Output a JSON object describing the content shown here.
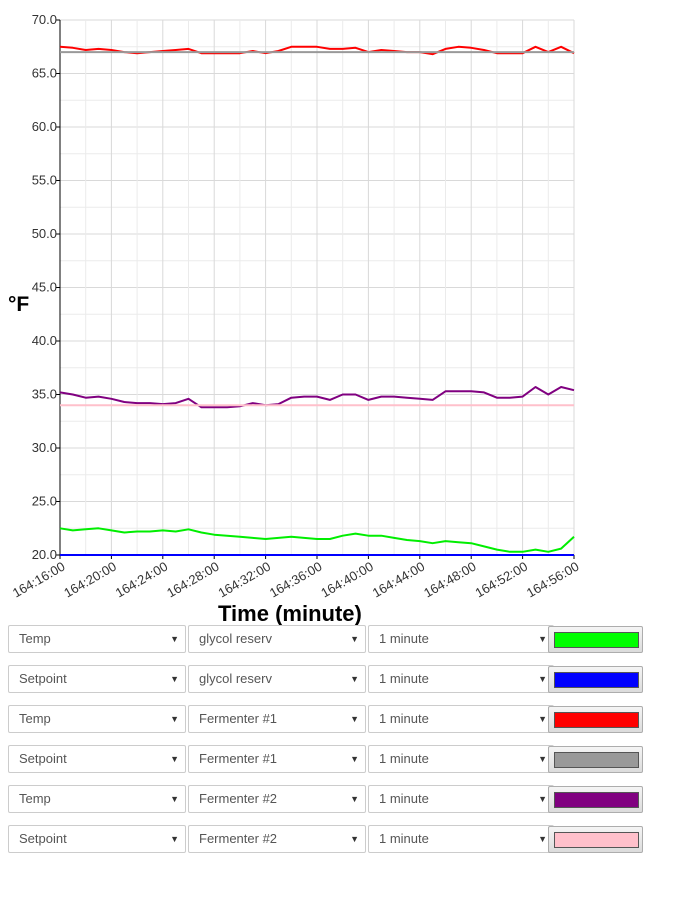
{
  "chart_data": {
    "type": "line",
    "xlabel": "Time (minute)",
    "ylabel": "°F",
    "ylim": [
      20,
      70
    ],
    "yticks": [
      "20.0",
      "25.0",
      "30.0",
      "35.0",
      "40.0",
      "45.0",
      "50.0",
      "55.0",
      "60.0",
      "65.0",
      "70.0"
    ],
    "xlim": [
      0,
      40
    ],
    "xticks": [
      {
        "t": 0,
        "label": "164:16:00"
      },
      {
        "t": 4,
        "label": "164:20:00"
      },
      {
        "t": 8,
        "label": "164:24:00"
      },
      {
        "t": 12,
        "label": "164:28:00"
      },
      {
        "t": 16,
        "label": "164:32:00"
      },
      {
        "t": 20,
        "label": "164:36:00"
      },
      {
        "t": 24,
        "label": "164:40:00"
      },
      {
        "t": 28,
        "label": "164:44:00"
      },
      {
        "t": 32,
        "label": "164:48:00"
      },
      {
        "t": 36,
        "label": "164:52:00"
      },
      {
        "t": 40,
        "label": "164:56:00"
      }
    ],
    "grid": true,
    "x": [
      0,
      1,
      2,
      3,
      4,
      5,
      6,
      7,
      8,
      9,
      10,
      11,
      12,
      13,
      14,
      15,
      16,
      17,
      18,
      19,
      20,
      21,
      22,
      23,
      24,
      25,
      26,
      27,
      28,
      29,
      30,
      31,
      32,
      33,
      34,
      35,
      36,
      37,
      38,
      39,
      40
    ],
    "series": [
      {
        "color": "#ff0000",
        "values": [
          67.5,
          67.4,
          67.2,
          67.3,
          67.2,
          67.0,
          66.9,
          67.0,
          67.1,
          67.2,
          67.3,
          66.9,
          66.9,
          66.9,
          66.9,
          67.1,
          66.9,
          67.1,
          67.5,
          67.5,
          67.5,
          67.3,
          67.3,
          67.4,
          67.0,
          67.2,
          67.1,
          67.0,
          67.0,
          66.8,
          67.3,
          67.5,
          67.4,
          67.2,
          66.9,
          66.9,
          66.9,
          67.5,
          67.0,
          67.5,
          66.9
        ]
      },
      {
        "color": "#999999",
        "values": [
          67.0,
          67.0,
          67.0,
          67.0,
          67.0,
          67.0,
          67.0,
          67.0,
          67.0,
          67.0,
          67.0,
          67.0,
          67.0,
          67.0,
          67.0,
          67.0,
          67.0,
          67.0,
          67.0,
          67.0,
          67.0,
          67.0,
          67.0,
          67.0,
          67.0,
          67.0,
          67.0,
          67.0,
          67.0,
          67.0,
          67.0,
          67.0,
          67.0,
          67.0,
          67.0,
          67.0,
          67.0,
          67.0,
          67.0,
          67.0,
          67.0
        ]
      },
      {
        "color": "#800080",
        "values": [
          35.2,
          35.0,
          34.7,
          34.8,
          34.6,
          34.3,
          34.2,
          34.2,
          34.1,
          34.2,
          34.6,
          33.8,
          33.8,
          33.8,
          33.9,
          34.2,
          34.0,
          34.1,
          34.7,
          34.8,
          34.8,
          34.5,
          35.0,
          35.0,
          34.5,
          34.8,
          34.8,
          34.7,
          34.6,
          34.5,
          35.3,
          35.3,
          35.3,
          35.2,
          34.7,
          34.7,
          34.8,
          35.7,
          35.0,
          35.7,
          35.4
        ]
      },
      {
        "color": "#ffc0cb",
        "values": [
          34.0,
          34.0,
          34.0,
          34.0,
          34.0,
          34.0,
          34.0,
          34.0,
          34.0,
          34.0,
          34.0,
          34.0,
          34.0,
          34.0,
          34.0,
          34.0,
          34.0,
          34.0,
          34.0,
          34.0,
          34.0,
          34.0,
          34.0,
          34.0,
          34.0,
          34.0,
          34.0,
          34.0,
          34.0,
          34.0,
          34.0,
          34.0,
          34.0,
          34.0,
          34.0,
          34.0,
          34.0,
          34.0,
          34.0,
          34.0,
          34.0
        ]
      },
      {
        "color": "#00ee00",
        "values": [
          22.5,
          22.3,
          22.4,
          22.5,
          22.3,
          22.1,
          22.2,
          22.2,
          22.3,
          22.2,
          22.4,
          22.1,
          21.9,
          21.8,
          21.7,
          21.6,
          21.5,
          21.6,
          21.7,
          21.6,
          21.5,
          21.5,
          21.8,
          22.0,
          21.8,
          21.8,
          21.6,
          21.4,
          21.3,
          21.1,
          21.3,
          21.2,
          21.1,
          20.8,
          20.5,
          20.3,
          20.3,
          20.5,
          20.3,
          20.6,
          21.7
        ]
      },
      {
        "color": "#0000ff",
        "values": [
          20.0,
          20.0,
          20.0,
          20.0,
          20.0,
          20.0,
          20.0,
          20.0,
          20.0,
          20.0,
          20.0,
          20.0,
          20.0,
          20.0,
          20.0,
          20.0,
          20.0,
          20.0,
          20.0,
          20.0,
          20.0,
          20.0,
          20.0,
          20.0,
          20.0,
          20.0,
          20.0,
          20.0,
          20.0,
          20.0,
          20.0,
          20.0,
          20.0,
          20.0,
          20.0,
          20.0,
          20.0,
          20.0,
          20.0,
          20.0,
          20.0
        ]
      }
    ]
  },
  "controls": [
    {
      "measure": "Temp",
      "device": "glycol reserv",
      "interval": "1 minute",
      "color": "#00ff00"
    },
    {
      "measure": "Setpoint",
      "device": "glycol reserv",
      "interval": "1 minute",
      "color": "#0000ff"
    },
    {
      "measure": "Temp",
      "device": "Fermenter #1",
      "interval": "1 minute",
      "color": "#ff0000"
    },
    {
      "measure": "Setpoint",
      "device": "Fermenter #1",
      "interval": "1 minute",
      "color": "#999999"
    },
    {
      "measure": "Temp",
      "device": "Fermenter #2",
      "interval": "1 minute",
      "color": "#800080"
    },
    {
      "measure": "Setpoint",
      "device": "Fermenter #2",
      "interval": "1 minute",
      "color": "#ffc0cb"
    }
  ]
}
